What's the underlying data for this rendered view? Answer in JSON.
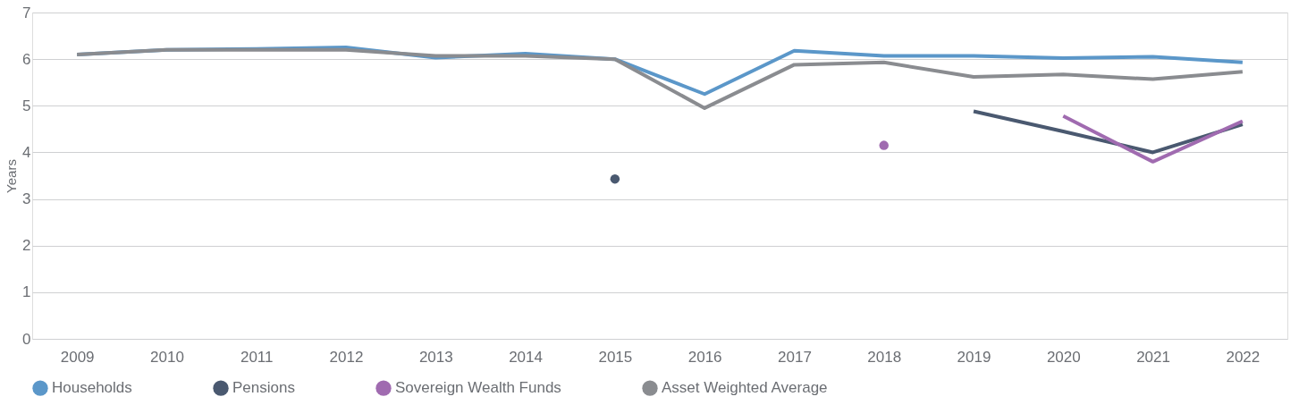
{
  "chart_data": {
    "type": "line",
    "ylabel": "Years",
    "categories": [
      "2009",
      "2010",
      "2011",
      "2012",
      "2013",
      "2014",
      "2015",
      "2016",
      "2017",
      "2018",
      "2019",
      "2020",
      "2021",
      "2022"
    ],
    "series": [
      {
        "name": "Households",
        "color": "#5b97c9",
        "values": [
          6.1,
          6.2,
          6.22,
          6.25,
          6.03,
          6.12,
          6.0,
          5.25,
          6.18,
          6.07,
          6.07,
          6.02,
          6.05,
          5.93
        ]
      },
      {
        "name": "Pensions",
        "color": "#4a5970",
        "values": [
          null,
          null,
          null,
          null,
          null,
          null,
          3.43,
          null,
          null,
          null,
          4.88,
          4.45,
          4.0,
          4.6
        ]
      },
      {
        "name": "Sovereign Wealth Funds",
        "color": "#a06bb0",
        "values": [
          null,
          null,
          null,
          null,
          null,
          null,
          null,
          null,
          null,
          4.15,
          null,
          4.78,
          3.8,
          4.67
        ]
      },
      {
        "name": "Asset Weighted Average",
        "color": "#8a8c90",
        "values": [
          6.1,
          6.2,
          6.2,
          6.2,
          6.07,
          6.07,
          6.0,
          4.95,
          5.88,
          5.93,
          5.62,
          5.67,
          5.57,
          5.73
        ]
      }
    ],
    "ylim": [
      0,
      7
    ],
    "yticks": [
      0,
      1,
      2,
      3,
      4,
      5,
      6,
      7
    ],
    "grid": "y",
    "legend": "bottom",
    "line_style": "solid"
  }
}
